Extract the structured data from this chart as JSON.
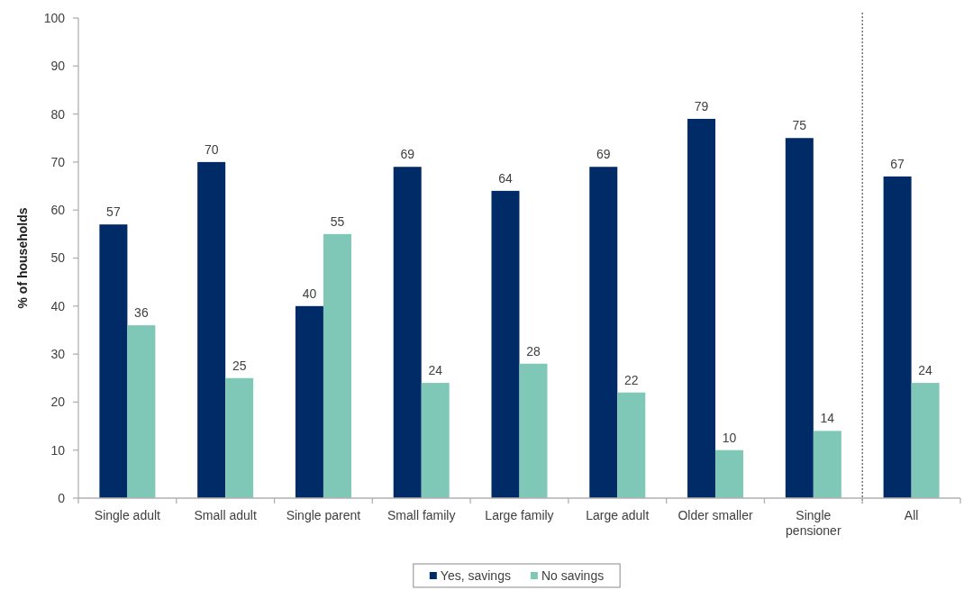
{
  "chart_data": {
    "type": "bar",
    "ylabel": "% of households",
    "categories": [
      "Single adult",
      "Small adult",
      "Single parent",
      "Small family",
      "Large family",
      "Large adult",
      "Older smaller",
      "Single pensioner",
      "All"
    ],
    "series": [
      {
        "name": "Yes, savings",
        "color": "#002b66",
        "values": [
          57,
          70,
          40,
          69,
          64,
          69,
          79,
          75,
          67
        ]
      },
      {
        "name": "No savings",
        "color": "#7fc8b8",
        "values": [
          36,
          25,
          55,
          24,
          28,
          22,
          10,
          14,
          24
        ]
      }
    ],
    "ylim": [
      0,
      100
    ],
    "yticks": [
      0,
      10,
      20,
      30,
      40,
      50,
      60,
      70,
      80,
      90,
      100
    ],
    "data_labels": true,
    "legend": "bottom"
  }
}
